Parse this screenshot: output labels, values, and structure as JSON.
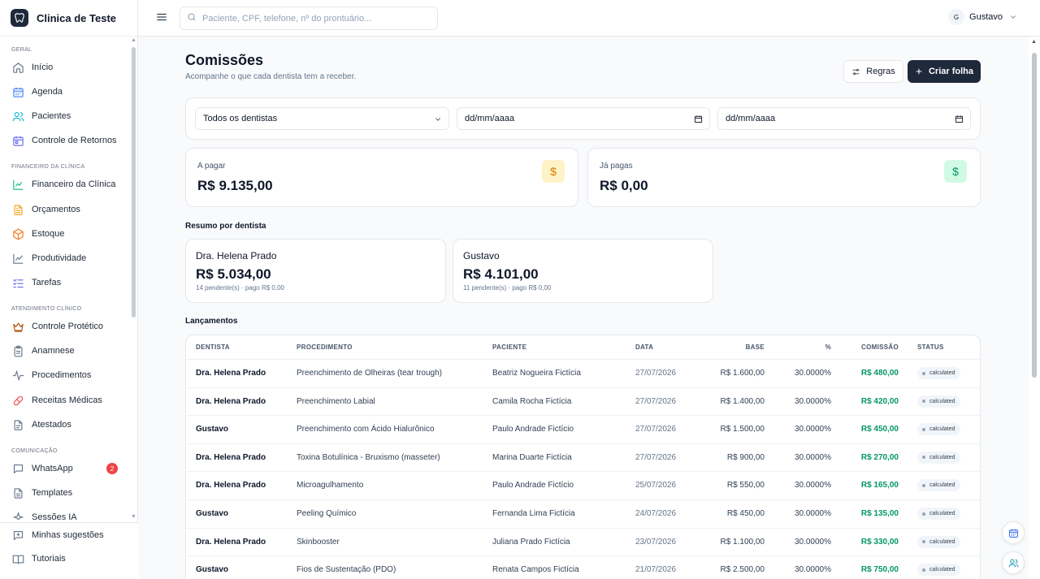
{
  "brand": {
    "name": "Clinica de Teste"
  },
  "search": {
    "placeholder": "Paciente, CPF, telefone, nº do prontuário..."
  },
  "user": {
    "initial": "G",
    "name": "Gustavo"
  },
  "sidebar": {
    "sections": [
      {
        "label": "GERAL"
      },
      {
        "label": "FINANCEIRO DA CLÍNICA"
      },
      {
        "label": "ATENDIMENTO CLÍNICO"
      },
      {
        "label": "COMUNICAÇÃO"
      }
    ],
    "items": [
      {
        "label": "Início",
        "icon": "home-icon"
      },
      {
        "label": "Agenda",
        "icon": "calendar-icon"
      },
      {
        "label": "Pacientes",
        "icon": "users-icon"
      },
      {
        "label": "Controle de Retornos",
        "icon": "calendar-check-icon"
      },
      {
        "label": "Financeiro da Clínica",
        "icon": "chart-line-icon"
      },
      {
        "label": "Orçamentos",
        "icon": "file-text-icon"
      },
      {
        "label": "Estoque",
        "icon": "package-icon"
      },
      {
        "label": "Produtividade",
        "icon": "trend-icon"
      },
      {
        "label": "Tarefas",
        "icon": "checklist-icon"
      },
      {
        "label": "Controle Protético",
        "icon": "crown-icon"
      },
      {
        "label": "Anamnese",
        "icon": "clipboard-icon"
      },
      {
        "label": "Procedimentos",
        "icon": "activity-icon"
      },
      {
        "label": "Receitas Médicas",
        "icon": "pill-icon"
      },
      {
        "label": "Atestados",
        "icon": "document-icon"
      },
      {
        "label": "WhatsApp",
        "icon": "message-icon",
        "badge": "2"
      },
      {
        "label": "Templates",
        "icon": "template-icon"
      },
      {
        "label": "Sessões IA",
        "icon": "sparkle-icon"
      }
    ],
    "bottom": [
      {
        "label": "Minhas sugestões",
        "icon": "suggestion-icon"
      },
      {
        "label": "Tutoriais",
        "icon": "book-icon"
      }
    ]
  },
  "page": {
    "title": "Comissões",
    "subtitle": "Acompanhe o que cada dentista tem a receber.",
    "rules_label": "Regras",
    "create_label": "Criar folha"
  },
  "filters": {
    "dentist": "Todos os dentistas",
    "date_from": "dd/mm/aaaa",
    "date_to": "dd/mm/aaaa"
  },
  "stats": {
    "to_pay_label": "A pagar",
    "to_pay_value": "R$ 9.135,00",
    "paid_label": "Já pagas",
    "paid_value": "R$ 0,00"
  },
  "summary": {
    "heading": "Resumo por dentista",
    "dentists": [
      {
        "name": "Dra. Helena Prado",
        "total": "R$ 5.034,00",
        "meta": "14 pendente(s) · pago R$ 0,00"
      },
      {
        "name": "Gustavo",
        "total": "R$ 4.101,00",
        "meta": "11 pendente(s) · pago R$ 0,00"
      }
    ]
  },
  "entries": {
    "heading": "Lançamentos",
    "columns": [
      "DENTISTA",
      "PROCEDIMENTO",
      "PACIENTE",
      "DATA",
      "BASE",
      "%",
      "COMISSÃO",
      "STATUS"
    ],
    "rows": [
      {
        "dentist": "Dra. Helena Prado",
        "procedure": "Preenchimento de Olheiras (tear trough)",
        "patient": "Beatriz Nogueira Fictícia",
        "date": "27/07/2026",
        "base": "R$ 1.600,00",
        "pct": "30.0000%",
        "commission": "R$ 480,00",
        "status": "calculated"
      },
      {
        "dentist": "Dra. Helena Prado",
        "procedure": "Preenchimento Labial",
        "patient": "Camila Rocha Fictícia",
        "date": "27/07/2026",
        "base": "R$ 1.400,00",
        "pct": "30.0000%",
        "commission": "R$ 420,00",
        "status": "calculated"
      },
      {
        "dentist": "Gustavo",
        "procedure": "Preenchimento com Ácido Hialurônico",
        "patient": "Paulo Andrade Fictício",
        "date": "27/07/2026",
        "base": "R$ 1.500,00",
        "pct": "30.0000%",
        "commission": "R$ 450,00",
        "status": "calculated"
      },
      {
        "dentist": "Dra. Helena Prado",
        "procedure": "Toxina Botulínica - Bruxismo (masseter)",
        "patient": "Marina Duarte Fictícia",
        "date": "27/07/2026",
        "base": "R$ 900,00",
        "pct": "30.0000%",
        "commission": "R$ 270,00",
        "status": "calculated"
      },
      {
        "dentist": "Dra. Helena Prado",
        "procedure": "Microagulhamento",
        "patient": "Paulo Andrade Fictício",
        "date": "25/07/2026",
        "base": "R$ 550,00",
        "pct": "30.0000%",
        "commission": "R$ 165,00",
        "status": "calculated"
      },
      {
        "dentist": "Gustavo",
        "procedure": "Peeling Químico",
        "patient": "Fernanda Lima Fictícia",
        "date": "24/07/2026",
        "base": "R$ 450,00",
        "pct": "30.0000%",
        "commission": "R$ 135,00",
        "status": "calculated"
      },
      {
        "dentist": "Dra. Helena Prado",
        "procedure": "Skinbooster",
        "patient": "Juliana Prado Fictícia",
        "date": "23/07/2026",
        "base": "R$ 1.100,00",
        "pct": "30.0000%",
        "commission": "R$ 330,00",
        "status": "calculated"
      },
      {
        "dentist": "Gustavo",
        "procedure": "Fios de Sustentação (PDO)",
        "patient": "Renata Campos Fictícia",
        "date": "21/07/2026",
        "base": "R$ 2.500,00",
        "pct": "30.0000%",
        "commission": "R$ 750,00",
        "status": "calculated"
      }
    ]
  },
  "colors": {
    "primary": "#1e293b",
    "accent_green": "#059669",
    "warn_bg": "#fef3c7",
    "warn_fg": "#d97706",
    "ok_bg": "#d1fae5",
    "badge_red": "#ef4444"
  }
}
